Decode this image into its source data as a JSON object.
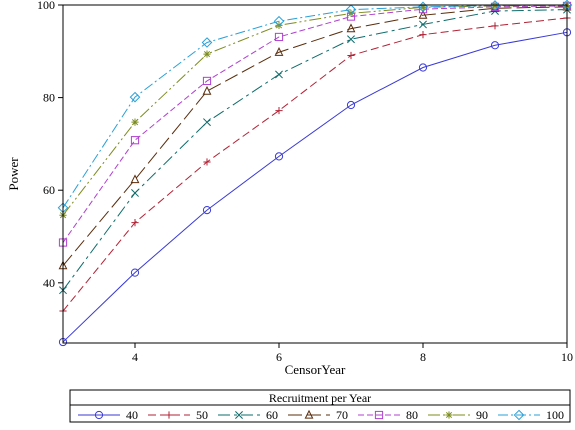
{
  "chart_data": {
    "type": "line",
    "xlabel": "CensorYear",
    "ylabel": "Power",
    "xlim": [
      3,
      10
    ],
    "ylim": [
      27,
      100
    ],
    "xticks": [
      4,
      6,
      8,
      10
    ],
    "yticks": [
      40,
      60,
      80,
      100
    ],
    "grid": false,
    "legend": {
      "title": "Recruitment per Year",
      "placement": "bottom"
    },
    "x": [
      3,
      4,
      5,
      6,
      7,
      8,
      9,
      10
    ],
    "series": [
      {
        "name": "40",
        "color": "#3a3ad6",
        "dash": "",
        "marker": "circle",
        "values": [
          27.2,
          42.2,
          55.7,
          67.3,
          78.4,
          86.5,
          91.3,
          94.1
        ]
      },
      {
        "name": "50",
        "color": "#b22234",
        "dash": "8,4",
        "marker": "plus",
        "values": [
          33.9,
          53.0,
          66.1,
          77.2,
          89.1,
          93.6,
          95.5,
          97.2
        ]
      },
      {
        "name": "60",
        "color": "#0d6b6b",
        "dash": "12,4,3,4",
        "marker": "x",
        "values": [
          38.4,
          59.4,
          74.7,
          85.0,
          92.6,
          95.8,
          98.7,
          99.0
        ]
      },
      {
        "name": "70",
        "color": "#5a2d0c",
        "dash": "14,5",
        "marker": "triangle",
        "values": [
          43.7,
          62.3,
          81.4,
          89.8,
          94.9,
          97.8,
          99.3,
          99.6
        ]
      },
      {
        "name": "80",
        "color": "#b040d0",
        "dash": "6,3",
        "marker": "square",
        "values": [
          48.7,
          70.8,
          83.6,
          93.1,
          97.5,
          99.1,
          99.6,
          99.8
        ]
      },
      {
        "name": "90",
        "color": "#7d8c1e",
        "dash": "12,3,2,3,2,3",
        "marker": "star",
        "values": [
          54.6,
          74.7,
          89.4,
          95.6,
          98.2,
          99.5,
          99.8,
          99.9
        ]
      },
      {
        "name": "100",
        "color": "#2aa0d8",
        "dash": "10,3,2,3",
        "marker": "diamond",
        "values": [
          56.2,
          80.1,
          91.9,
          96.5,
          99.0,
          99.6,
          99.9,
          100.0
        ]
      }
    ]
  }
}
